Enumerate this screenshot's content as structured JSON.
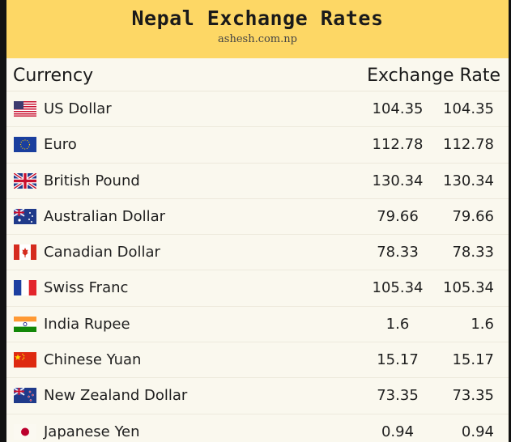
{
  "header": {
    "title": "Nepal Exchange Rates",
    "source": "ashesh.com.np"
  },
  "columns": {
    "currency": "Currency",
    "rate": "Exchange Rate"
  },
  "rows": [
    {
      "flag": "us-flag-icon",
      "name": "US Dollar",
      "buy": "104.35",
      "sell": "104.35"
    },
    {
      "flag": "eu-flag-icon",
      "name": "Euro",
      "buy": "112.78",
      "sell": "112.78"
    },
    {
      "flag": "uk-flag-icon",
      "name": "British Pound",
      "buy": "130.34",
      "sell": "130.34"
    },
    {
      "flag": "au-flag-icon",
      "name": "Australian Dollar",
      "buy": "79.66",
      "sell": "79.66"
    },
    {
      "flag": "ca-flag-icon",
      "name": "Canadian Dollar",
      "buy": "78.33",
      "sell": "78.33"
    },
    {
      "flag": "ch-flag-icon",
      "name": "Swiss Franc",
      "buy": "105.34",
      "sell": "105.34"
    },
    {
      "flag": "in-flag-icon",
      "name": "India Rupee",
      "buy": "1.6",
      "sell": "1.6"
    },
    {
      "flag": "cn-flag-icon",
      "name": "Chinese Yuan",
      "buy": "15.17",
      "sell": "15.17"
    },
    {
      "flag": "nz-flag-icon",
      "name": "New Zealand Dollar",
      "buy": "73.35",
      "sell": "73.35"
    },
    {
      "flag": "jp-flag-icon",
      "name": "Japanese Yen",
      "buy": "0.94",
      "sell": "0.94"
    }
  ]
}
